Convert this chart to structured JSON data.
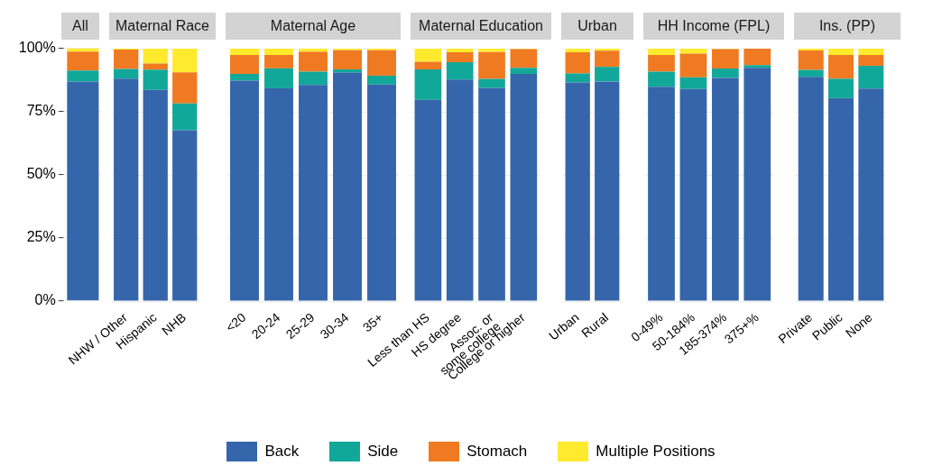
{
  "chart_data": [
    {
      "type": "bar",
      "title": "All",
      "stacked": true,
      "categories": [
        null
      ],
      "ylim": [
        0,
        100
      ],
      "yticks": [
        {
          "value": 0,
          "label": "0%"
        },
        {
          "value": 25,
          "label": "25%"
        },
        {
          "value": 50,
          "label": "50%"
        },
        {
          "value": 75,
          "label": "75%"
        },
        {
          "value": 100,
          "label": "100%"
        }
      ],
      "grid": "y",
      "legend": "bottom",
      "series": [
        {
          "name": "Back",
          "color": "#3566ab",
          "values": [
            86.8
          ]
        },
        {
          "name": "Side",
          "color": "#12a899",
          "values": [
            4.4
          ]
        },
        {
          "name": "Stomach",
          "color": "#f07a21",
          "values": [
            7.5
          ]
        },
        {
          "name": "Multiple Positions",
          "color": "#ffea2e",
          "values": [
            1.3
          ]
        }
      ]
    },
    {
      "type": "bar",
      "title": "Maternal Race",
      "stacked": true,
      "categories": [
        "NHW / Other",
        "Hispanic",
        "NHB"
      ],
      "ylim": [
        0,
        100
      ],
      "grid": "y",
      "tick_labels": "x",
      "series": [
        {
          "color": "#3566ab",
          "values": [
            88.1,
            83.7,
            67.7
          ]
        },
        {
          "color": "#12a899",
          "values": [
            3.9,
            8.0,
            10.6
          ]
        },
        {
          "color": "#f07a21",
          "values": [
            7.6,
            2.4,
            12.3
          ]
        },
        {
          "color": "#ffea2e",
          "values": [
            0.4,
            5.9,
            9.4
          ]
        }
      ]
    },
    {
      "type": "bar",
      "title": "Maternal Age",
      "stacked": true,
      "categories": [
        "<20",
        "20-24",
        "25-29",
        "30-34",
        "35+"
      ],
      "ylim": [
        0,
        100
      ],
      "grid": "y",
      "tick_labels": "x",
      "series": [
        {
          "color": "#3566ab",
          "values": [
            87.3,
            84.3,
            85.6,
            90.5,
            85.8
          ]
        },
        {
          "color": "#12a899",
          "values": [
            2.7,
            7.9,
            5.3,
            1.3,
            3.5
          ]
        },
        {
          "color": "#f07a21",
          "values": [
            7.5,
            5.3,
            7.9,
            7.6,
            10.1
          ]
        },
        {
          "color": "#ffea2e",
          "values": [
            2.5,
            2.5,
            1.2,
            0.6,
            0.6
          ]
        }
      ]
    },
    {
      "type": "bar",
      "title": "Maternal Education",
      "stacked": true,
      "categories": [
        "Less than HS",
        "HS degree",
        "Assoc. or\nsome college",
        "College or higher"
      ],
      "ylim": [
        0,
        100
      ],
      "grid": "y",
      "tick_labels": "x",
      "series": [
        {
          "color": "#3566ab",
          "values": [
            79.7,
            87.8,
            84.5,
            90.0
          ]
        },
        {
          "color": "#12a899",
          "values": [
            12.1,
            6.8,
            3.5,
            2.4
          ]
        },
        {
          "color": "#f07a21",
          "values": [
            3.0,
            4.0,
            10.7,
            7.4
          ]
        },
        {
          "color": "#ffea2e",
          "values": [
            5.2,
            1.4,
            1.3,
            0.2
          ]
        }
      ]
    },
    {
      "type": "bar",
      "title": "Urban",
      "stacked": true,
      "categories": [
        "Urban",
        "Rural"
      ],
      "ylim": [
        0,
        100
      ],
      "grid": "y",
      "tick_labels": "x",
      "series": [
        {
          "color": "#3566ab",
          "values": [
            86.6,
            87.0
          ]
        },
        {
          "color": "#12a899",
          "values": [
            3.6,
            5.8
          ]
        },
        {
          "color": "#f07a21",
          "values": [
            8.4,
            6.4
          ]
        },
        {
          "color": "#ffea2e",
          "values": [
            1.4,
            0.8
          ]
        }
      ]
    },
    {
      "type": "bar",
      "title": "HH Income (FPL)",
      "stacked": true,
      "categories": [
        "0-49%",
        "50-184%",
        "185-374%",
        "375+%"
      ],
      "ylim": [
        0,
        100
      ],
      "grid": "y",
      "tick_labels": "x",
      "series": [
        {
          "color": "#3566ab",
          "values": [
            84.9,
            84.0,
            88.4,
            92.4
          ]
        },
        {
          "color": "#12a899",
          "values": [
            6.0,
            4.7,
            3.7,
            1.1
          ]
        },
        {
          "color": "#f07a21",
          "values": [
            6.6,
            9.3,
            7.7,
            6.5
          ]
        },
        {
          "color": "#ffea2e",
          "values": [
            2.5,
            2.0,
            0.2,
            0
          ]
        }
      ]
    },
    {
      "type": "bar",
      "title": "Ins. (PP)",
      "stacked": true,
      "categories": [
        "Private",
        "Public",
        "None"
      ],
      "ylim": [
        0,
        100
      ],
      "grid": "y",
      "tick_labels": "x",
      "series": [
        {
          "color": "#3566ab",
          "values": [
            88.8,
            80.4,
            84.2
          ]
        },
        {
          "color": "#12a899",
          "values": [
            2.8,
            7.7,
            9.0
          ]
        },
        {
          "color": "#f07a21",
          "values": [
            7.7,
            9.4,
            4.3
          ]
        },
        {
          "color": "#ffea2e",
          "values": [
            0.7,
            2.5,
            2.5
          ]
        }
      ]
    }
  ]
}
